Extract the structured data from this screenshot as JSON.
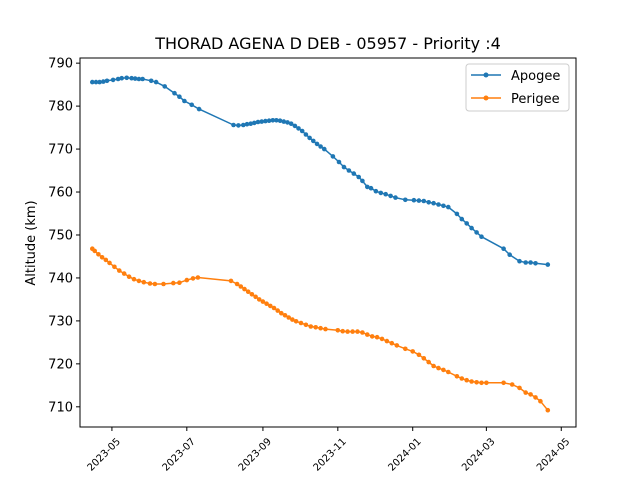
{
  "chart_data": {
    "type": "line",
    "title": "THORAD AGENA D DEB - 05957 - Priority :4",
    "xlabel": "",
    "ylabel": "Altitude (km)",
    "xlim": [
      "2023-04-05",
      "2024-05-13"
    ],
    "ylim": [
      705.3,
      791.2
    ],
    "yticks": [
      710,
      720,
      730,
      740,
      750,
      760,
      770,
      780,
      790
    ],
    "xticks": [
      "2023-05",
      "2023-07",
      "2023-09",
      "2023-11",
      "2024-01",
      "2024-03",
      "2024-05"
    ],
    "legend_position": "top-right",
    "grid": false,
    "series": [
      {
        "name": "Apogee",
        "color": "#1f77b4",
        "points": [
          [
            "2023-04-15",
            785.6
          ],
          [
            "2023-04-18",
            785.6
          ],
          [
            "2023-04-21",
            785.6
          ],
          [
            "2023-04-24",
            785.7
          ],
          [
            "2023-04-27",
            785.9
          ],
          [
            "2023-05-02",
            786.1
          ],
          [
            "2023-05-06",
            786.3
          ],
          [
            "2023-05-09",
            786.5
          ],
          [
            "2023-05-13",
            786.6
          ],
          [
            "2023-05-17",
            786.5
          ],
          [
            "2023-05-20",
            786.4
          ],
          [
            "2023-05-23",
            786.3
          ],
          [
            "2023-05-26",
            786.3
          ],
          [
            "2023-06-02",
            785.9
          ],
          [
            "2023-06-06",
            785.6
          ],
          [
            "2023-06-13",
            784.6
          ],
          [
            "2023-06-21",
            783.0
          ],
          [
            "2023-06-25",
            782.2
          ],
          [
            "2023-06-29",
            781.2
          ],
          [
            "2023-07-05",
            780.3
          ],
          [
            "2023-07-11",
            779.3
          ],
          [
            "2023-08-08",
            775.6
          ],
          [
            "2023-08-12",
            775.5
          ],
          [
            "2023-08-16",
            775.6
          ],
          [
            "2023-08-19",
            775.8
          ],
          [
            "2023-08-22",
            775.9
          ],
          [
            "2023-08-25",
            776.1
          ],
          [
            "2023-08-28",
            776.3
          ],
          [
            "2023-08-31",
            776.4
          ],
          [
            "2023-09-03",
            776.5
          ],
          [
            "2023-09-06",
            776.6
          ],
          [
            "2023-09-09",
            776.7
          ],
          [
            "2023-09-12",
            776.7
          ],
          [
            "2023-09-15",
            776.6
          ],
          [
            "2023-09-18",
            776.4
          ],
          [
            "2023-09-21",
            776.2
          ],
          [
            "2023-09-24",
            775.9
          ],
          [
            "2023-09-27",
            775.4
          ],
          [
            "2023-09-30",
            774.8
          ],
          [
            "2023-10-03",
            774.2
          ],
          [
            "2023-10-06",
            773.4
          ],
          [
            "2023-10-09",
            772.6
          ],
          [
            "2023-10-12",
            771.9
          ],
          [
            "2023-10-15",
            771.2
          ],
          [
            "2023-10-18",
            770.6
          ],
          [
            "2023-10-21",
            770.0
          ],
          [
            "2023-10-28",
            768.3
          ],
          [
            "2023-11-02",
            767.0
          ],
          [
            "2023-11-06",
            765.8
          ],
          [
            "2023-11-10",
            765.0
          ],
          [
            "2023-11-14",
            764.3
          ],
          [
            "2023-11-18",
            763.5
          ],
          [
            "2023-11-21",
            762.6
          ],
          [
            "2023-11-25",
            761.2
          ],
          [
            "2023-11-28",
            760.9
          ],
          [
            "2023-12-02",
            760.2
          ],
          [
            "2023-12-06",
            759.8
          ],
          [
            "2023-12-10",
            759.5
          ],
          [
            "2023-12-14",
            759.1
          ],
          [
            "2023-12-18",
            758.7
          ],
          [
            "2023-12-26",
            758.2
          ],
          [
            "2024-01-02",
            758.1
          ],
          [
            "2024-01-06",
            758.0
          ],
          [
            "2024-01-10",
            757.9
          ],
          [
            "2024-01-14",
            757.6
          ],
          [
            "2024-01-18",
            757.4
          ],
          [
            "2024-01-22",
            757.1
          ],
          [
            "2024-01-26",
            756.8
          ],
          [
            "2024-01-30",
            756.5
          ],
          [
            "2024-02-06",
            754.9
          ],
          [
            "2024-02-10",
            753.7
          ],
          [
            "2024-02-14",
            752.7
          ],
          [
            "2024-02-18",
            751.6
          ],
          [
            "2024-02-22",
            750.6
          ],
          [
            "2024-02-26",
            749.6
          ],
          [
            "2024-03-15",
            746.8
          ],
          [
            "2024-03-20",
            745.4
          ],
          [
            "2024-03-28",
            743.9
          ],
          [
            "2024-04-02",
            743.6
          ],
          [
            "2024-04-06",
            743.6
          ],
          [
            "2024-04-10",
            743.4
          ],
          [
            "2024-04-20",
            743.1
          ]
        ]
      },
      {
        "name": "Perigee",
        "color": "#ff7f0e",
        "points": [
          [
            "2023-04-15",
            746.8
          ],
          [
            "2023-04-17",
            746.3
          ],
          [
            "2023-04-20",
            745.5
          ],
          [
            "2023-04-23",
            744.8
          ],
          [
            "2023-04-26",
            744.2
          ],
          [
            "2023-04-29",
            743.5
          ],
          [
            "2023-05-03",
            742.6
          ],
          [
            "2023-05-07",
            741.7
          ],
          [
            "2023-05-11",
            741.0
          ],
          [
            "2023-05-15",
            740.3
          ],
          [
            "2023-05-19",
            739.7
          ],
          [
            "2023-05-23",
            739.3
          ],
          [
            "2023-05-27",
            739.0
          ],
          [
            "2023-06-01",
            738.7
          ],
          [
            "2023-06-05",
            738.6
          ],
          [
            "2023-06-12",
            738.6
          ],
          [
            "2023-06-20",
            738.8
          ],
          [
            "2023-06-25",
            738.9
          ],
          [
            "2023-07-01",
            739.5
          ],
          [
            "2023-07-06",
            739.9
          ],
          [
            "2023-07-10",
            740.1
          ],
          [
            "2023-08-06",
            739.3
          ],
          [
            "2023-08-11",
            738.6
          ],
          [
            "2023-08-14",
            738.0
          ],
          [
            "2023-08-17",
            737.4
          ],
          [
            "2023-08-20",
            736.8
          ],
          [
            "2023-08-23",
            736.2
          ],
          [
            "2023-08-26",
            735.6
          ],
          [
            "2023-08-29",
            735.0
          ],
          [
            "2023-09-01",
            734.5
          ],
          [
            "2023-09-04",
            734.0
          ],
          [
            "2023-09-07",
            733.5
          ],
          [
            "2023-09-10",
            733.0
          ],
          [
            "2023-09-13",
            732.4
          ],
          [
            "2023-09-16",
            731.8
          ],
          [
            "2023-09-19",
            731.3
          ],
          [
            "2023-09-22",
            730.8
          ],
          [
            "2023-09-25",
            730.3
          ],
          [
            "2023-09-28",
            729.9
          ],
          [
            "2023-10-02",
            729.5
          ],
          [
            "2023-10-06",
            729.1
          ],
          [
            "2023-10-10",
            728.7
          ],
          [
            "2023-10-14",
            728.5
          ],
          [
            "2023-10-18",
            728.3
          ],
          [
            "2023-10-22",
            728.1
          ],
          [
            "2023-11-01",
            727.8
          ],
          [
            "2023-11-05",
            727.6
          ],
          [
            "2023-11-09",
            727.5
          ],
          [
            "2023-11-13",
            727.5
          ],
          [
            "2023-11-17",
            727.5
          ],
          [
            "2023-11-21",
            727.3
          ],
          [
            "2023-11-25",
            726.8
          ],
          [
            "2023-11-29",
            726.4
          ],
          [
            "2023-12-03",
            726.2
          ],
          [
            "2023-12-07",
            725.8
          ],
          [
            "2023-12-11",
            725.3
          ],
          [
            "2023-12-15",
            724.8
          ],
          [
            "2023-12-19",
            724.3
          ],
          [
            "2023-12-26",
            723.5
          ],
          [
            "2024-01-01",
            722.9
          ],
          [
            "2024-01-06",
            722.1
          ],
          [
            "2024-01-10",
            721.3
          ],
          [
            "2024-01-14",
            720.4
          ],
          [
            "2024-01-18",
            719.5
          ],
          [
            "2024-01-22",
            719.0
          ],
          [
            "2024-01-26",
            718.6
          ],
          [
            "2024-01-30",
            718.1
          ],
          [
            "2024-02-06",
            717.1
          ],
          [
            "2024-02-10",
            716.6
          ],
          [
            "2024-02-14",
            716.2
          ],
          [
            "2024-02-18",
            715.9
          ],
          [
            "2024-02-22",
            715.7
          ],
          [
            "2024-02-26",
            715.6
          ],
          [
            "2024-03-01",
            715.6
          ],
          [
            "2024-03-15",
            715.6
          ],
          [
            "2024-03-22",
            715.2
          ],
          [
            "2024-03-28",
            714.4
          ],
          [
            "2024-04-02",
            713.3
          ],
          [
            "2024-04-06",
            712.9
          ],
          [
            "2024-04-10",
            712.2
          ],
          [
            "2024-04-14",
            711.3
          ],
          [
            "2024-04-20",
            709.2
          ]
        ]
      }
    ]
  }
}
